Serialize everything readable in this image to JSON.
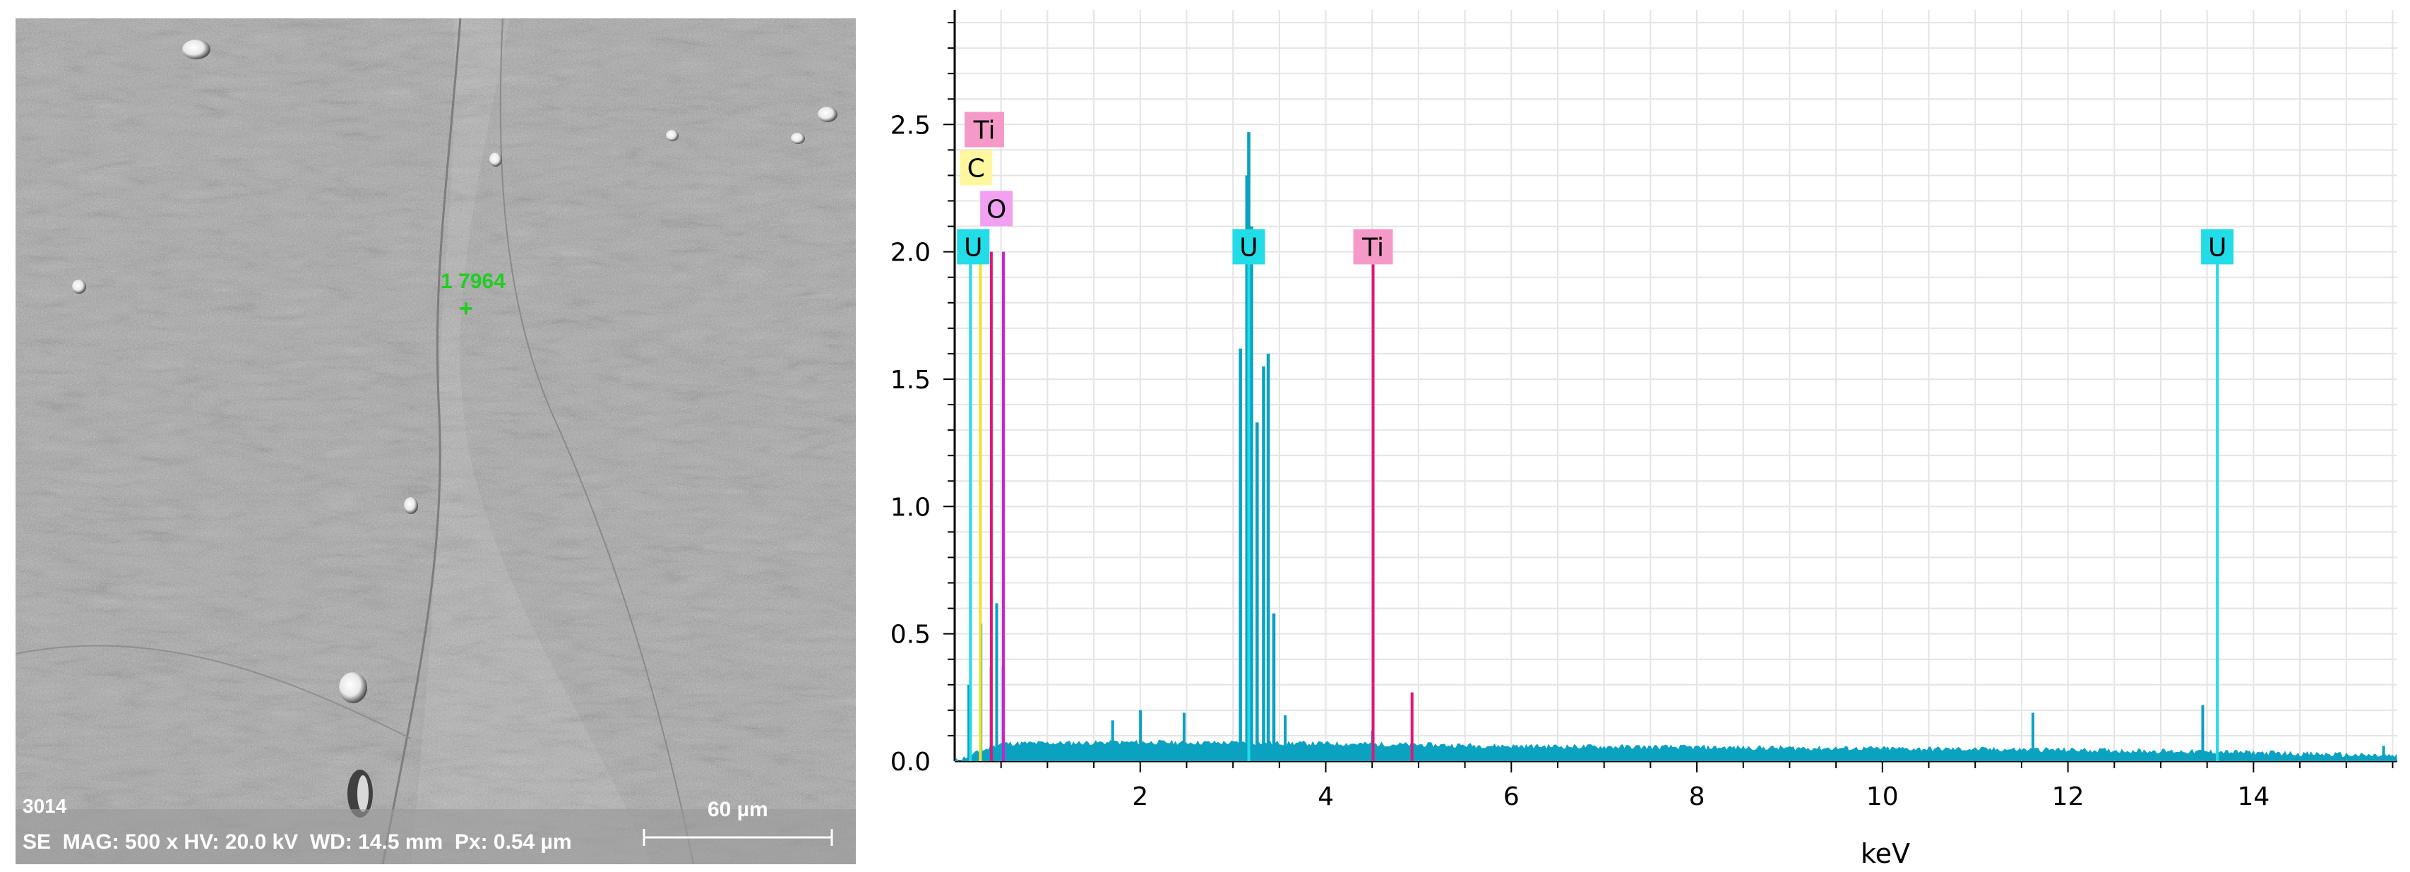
{
  "sem_image": {
    "image_number": "3014",
    "point_label": "1 7964",
    "point_marker": "+",
    "scale_bar_label": "60 µm",
    "info_bar": "SE  MAG: 500 x HV: 20.0 kV  WD: 14.5 mm  Px: 0.54 µm"
  },
  "chart_data": {
    "type": "bar",
    "title": "",
    "xlabel": "keV",
    "ylabel": "",
    "xlim": [
      0,
      15.55
    ],
    "ylim": [
      0,
      2.95
    ],
    "x_ticks": [
      2,
      4,
      6,
      8,
      10,
      12,
      14
    ],
    "y_ticks": [
      0.0,
      0.5,
      1.0,
      1.5,
      2.0,
      2.5
    ],
    "x_tick_labels": [
      "2",
      "4",
      "6",
      "8",
      "10",
      "12",
      "14"
    ],
    "y_tick_labels": [
      "0.0",
      "0.5",
      "1.0",
      "1.5",
      "2.0",
      "2.5"
    ],
    "grid": true,
    "spectrum_color": "#0aa2c0",
    "peaks": [
      {
        "x": 0.15,
        "y": 0.3
      },
      {
        "x": 0.28,
        "y": 0.54
      },
      {
        "x": 0.39,
        "y": 0.37
      },
      {
        "x": 0.45,
        "y": 0.62
      },
      {
        "x": 0.52,
        "y": 0.37
      },
      {
        "x": 1.7,
        "y": 0.16
      },
      {
        "x": 2.0,
        "y": 0.2
      },
      {
        "x": 2.47,
        "y": 0.19
      },
      {
        "x": 3.08,
        "y": 1.62
      },
      {
        "x": 3.15,
        "y": 2.3
      },
      {
        "x": 3.17,
        "y": 2.47
      },
      {
        "x": 3.2,
        "y": 2.1
      },
      {
        "x": 3.26,
        "y": 1.33
      },
      {
        "x": 3.33,
        "y": 1.55
      },
      {
        "x": 3.38,
        "y": 1.6
      },
      {
        "x": 3.44,
        "y": 0.58
      },
      {
        "x": 3.56,
        "y": 0.18
      },
      {
        "x": 4.5,
        "y": 0.12
      },
      {
        "x": 11.62,
        "y": 0.19
      },
      {
        "x": 13.45,
        "y": 0.22
      },
      {
        "x": 15.4,
        "y": 0.06
      }
    ],
    "baseline": [
      {
        "x": 0.5,
        "y": 0.07
      },
      {
        "x": 2.0,
        "y": 0.075
      },
      {
        "x": 4.0,
        "y": 0.07
      },
      {
        "x": 6.0,
        "y": 0.06
      },
      {
        "x": 8.0,
        "y": 0.055
      },
      {
        "x": 10.0,
        "y": 0.05
      },
      {
        "x": 12.0,
        "y": 0.045
      },
      {
        "x": 14.0,
        "y": 0.035
      },
      {
        "x": 15.55,
        "y": 0.02
      }
    ],
    "element_markers": [
      {
        "element": "C",
        "energy": 0.277,
        "color": "#f0e12a",
        "label_bg": "#fff7a0"
      },
      {
        "element": "U",
        "energy": 0.17,
        "color": "#22dce8",
        "label_bg": "#22dce8"
      },
      {
        "element": "Ti",
        "energy": 0.395,
        "color": "#e0167a",
        "label_bg": "#f59ac8"
      },
      {
        "element": "O",
        "energy": 0.525,
        "color": "#cc22cc",
        "label_bg": "#f2a0f2"
      },
      {
        "element": "U",
        "energy": 3.17,
        "color": "#22dce8",
        "label_bg": "#22dce8"
      },
      {
        "element": "Ti",
        "energy": 4.51,
        "color": "#e0167a",
        "label_bg": "#f59ac8"
      },
      {
        "element": "Ti",
        "energy": 4.93,
        "color": "#e0167a",
        "label_bg": "#f59ac8"
      },
      {
        "element": "U",
        "energy": 13.61,
        "color": "#22dce8",
        "label_bg": "#22dce8"
      }
    ],
    "element_labels": [
      {
        "text": "Ti",
        "energy": 0.32,
        "y": 2.48,
        "bg": "#f59ac8"
      },
      {
        "text": "C",
        "energy": 0.23,
        "y": 2.33,
        "bg": "#fff7a0"
      },
      {
        "text": "O",
        "energy": 0.45,
        "y": 2.17,
        "bg": "#f2a0f2"
      },
      {
        "text": "U",
        "energy": 0.2,
        "y": 2.02,
        "bg": "#22dce8"
      },
      {
        "text": "U",
        "energy": 3.17,
        "y": 2.02,
        "bg": "#22dce8"
      },
      {
        "text": "Ti",
        "energy": 4.51,
        "y": 2.02,
        "bg": "#f59ac8"
      },
      {
        "text": "U",
        "energy": 13.61,
        "y": 2.02,
        "bg": "#22dce8"
      }
    ]
  }
}
